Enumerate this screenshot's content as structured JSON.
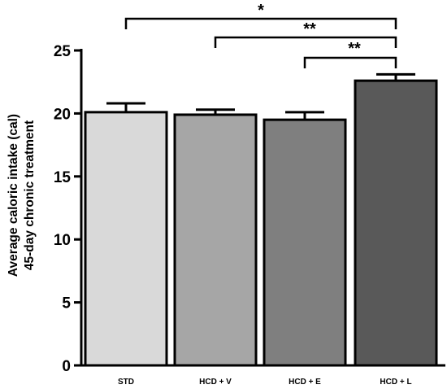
{
  "chart_data": {
    "type": "bar",
    "categories": [
      "STD",
      "HCD + V",
      "HCD + E",
      "HCD + L"
    ],
    "values": [
      20.1,
      19.9,
      19.5,
      22.6
    ],
    "errors": [
      0.7,
      0.4,
      0.6,
      0.5
    ],
    "bar_colors": [
      "#d9d9d9",
      "#a6a6a6",
      "#7f7f7f",
      "#595959"
    ],
    "ylabel_line1": "Average caloric intake (cal)",
    "ylabel_line2": "45-day chronic treatment",
    "ylim": [
      0,
      25
    ],
    "yticks": [
      0,
      5,
      10,
      15,
      20,
      25
    ],
    "ytick_labels": [
      "0",
      "5",
      "10",
      "15",
      "20",
      "25"
    ],
    "significance": [
      {
        "from": 0,
        "to": 3,
        "label": "*"
      },
      {
        "from": 1,
        "to": 3,
        "label": "**"
      },
      {
        "from": 2,
        "to": 3,
        "label": "**"
      }
    ],
    "grid": false
  }
}
